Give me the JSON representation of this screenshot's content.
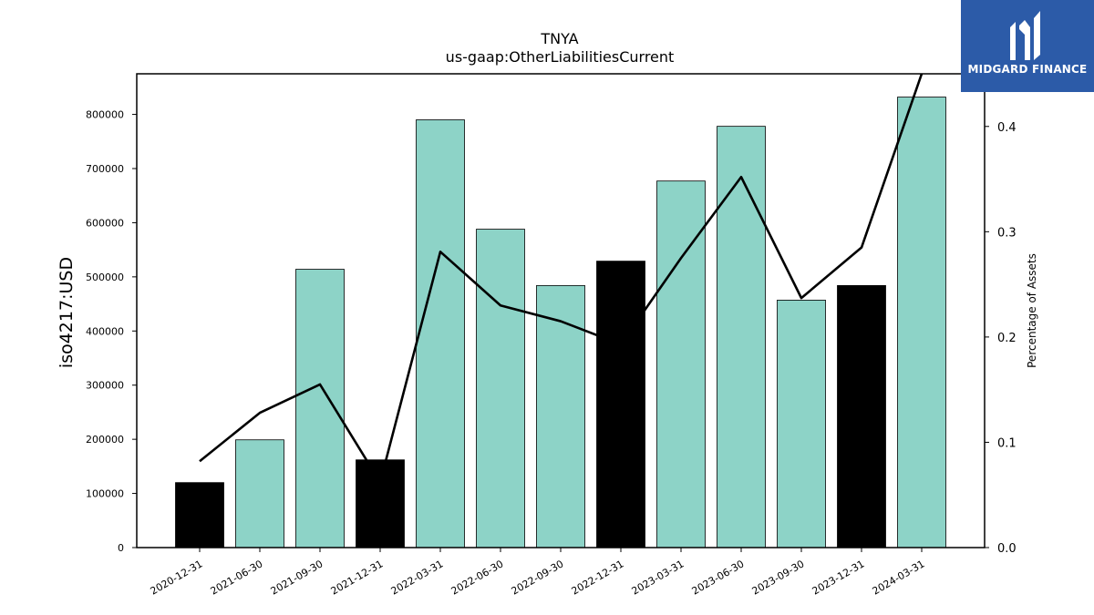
{
  "chart_data": {
    "type": "bar",
    "title": "TNYA",
    "subtitle": "us-gaap:OtherLiabilitiesCurrent",
    "ylabel": "iso4217:USD",
    "ylabel_right": "Percentage of Assets",
    "categories": [
      "2020-12-31",
      "2021-06-30",
      "2021-09-30",
      "2021-12-31",
      "2022-03-31",
      "2022-06-30",
      "2022-09-30",
      "2022-12-31",
      "2023-03-31",
      "2023-06-30",
      "2023-09-30",
      "2023-12-31",
      "2024-03-31"
    ],
    "values": [
      120000,
      199000,
      514000,
      162000,
      790000,
      588000,
      484000,
      529000,
      677000,
      778000,
      457000,
      484000,
      832000
    ],
    "bar_colors": [
      "#000000",
      "#8dd3c7",
      "#8dd3c7",
      "#000000",
      "#8dd3c7",
      "#8dd3c7",
      "#8dd3c7",
      "#000000",
      "#8dd3c7",
      "#8dd3c7",
      "#8dd3c7",
      "#000000",
      "#8dd3c7"
    ],
    "line_values": [
      0.082,
      0.128,
      0.155,
      0.062,
      0.281,
      0.23,
      0.215,
      0.193,
      0.275,
      0.352,
      0.237,
      0.285,
      0.455
    ],
    "ylim": [
      0,
      875000
    ],
    "ylim_right": [
      0,
      0.45
    ],
    "yticks": [
      0,
      100000,
      200000,
      300000,
      400000,
      500000,
      600000,
      700000,
      800000
    ],
    "yticks_right": [
      0.0,
      0.1,
      0.2,
      0.3,
      0.4
    ],
    "yticks_right_labels": [
      "0.0",
      "0.1",
      "0.2",
      "0.3",
      "0.4"
    ],
    "grid": false,
    "legend": "none",
    "colors": {
      "bar_default": "#8dd3c7",
      "bar_highlight": "#000000",
      "line": "#000000"
    }
  },
  "logo": {
    "text": "MIDGARD FINANCE",
    "background": "#2c5ba8",
    "icon": "midgard-logo-icon"
  }
}
